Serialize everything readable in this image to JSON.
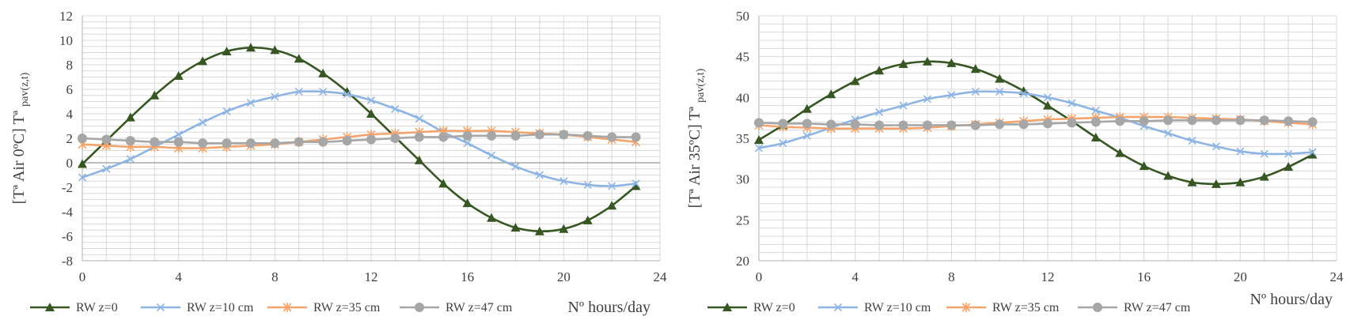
{
  "chart_data": [
    {
      "type": "line",
      "ylabel": "[Tª Air 0ºC] Tª",
      "ylabel_sub": "pav(z,t)",
      "xlabel": "Nº hours/day",
      "xlim": [
        0,
        24
      ],
      "xticks": [
        0,
        4,
        8,
        12,
        16,
        20,
        24
      ],
      "ylim": [
        -8,
        12
      ],
      "yticks": [
        -8,
        -6,
        -4,
        -2,
        0,
        2,
        4,
        6,
        8,
        10,
        12
      ],
      "minor_grid_step": 0.5,
      "grid": true,
      "legend_position": "bottom",
      "x": [
        0,
        1,
        2,
        3,
        4,
        5,
        6,
        7,
        8,
        9,
        10,
        11,
        12,
        13,
        14,
        15,
        16,
        17,
        18,
        19,
        20,
        21,
        22,
        23
      ],
      "series": [
        {
          "name": "RW z=0",
          "color": "#375623",
          "marker": "triangle",
          "values": [
            -0.1,
            1.8,
            3.7,
            5.5,
            7.1,
            8.3,
            9.1,
            9.4,
            9.2,
            8.5,
            7.3,
            5.8,
            4.0,
            2.1,
            0.2,
            -1.7,
            -3.3,
            -4.5,
            -5.3,
            -5.6,
            -5.4,
            -4.7,
            -3.5,
            -1.9
          ]
        },
        {
          "name": "RW z=10 cm",
          "color": "#8db4e2",
          "marker": "x",
          "values": [
            -1.2,
            -0.5,
            0.3,
            1.3,
            2.3,
            3.3,
            4.2,
            4.9,
            5.4,
            5.8,
            5.8,
            5.6,
            5.1,
            4.4,
            3.6,
            2.5,
            1.6,
            0.6,
            -0.3,
            -1.0,
            -1.5,
            -1.8,
            -1.9,
            -1.7
          ]
        },
        {
          "name": "RW z=35 cm",
          "color": "#f4a46b",
          "marker": "asterisk",
          "values": [
            1.5,
            1.4,
            1.3,
            1.3,
            1.2,
            1.2,
            1.3,
            1.4,
            1.5,
            1.7,
            1.9,
            2.1,
            2.3,
            2.4,
            2.5,
            2.6,
            2.6,
            2.6,
            2.5,
            2.4,
            2.3,
            2.1,
            1.9,
            1.7
          ]
        },
        {
          "name": "RW z=47 cm",
          "color": "#a6a6a6",
          "marker": "circle",
          "values": [
            2.0,
            1.9,
            1.8,
            1.7,
            1.7,
            1.6,
            1.6,
            1.6,
            1.6,
            1.7,
            1.7,
            1.8,
            1.9,
            2.0,
            2.1,
            2.1,
            2.2,
            2.2,
            2.2,
            2.3,
            2.3,
            2.2,
            2.1,
            2.1
          ]
        }
      ]
    },
    {
      "type": "line",
      "ylabel": "[Tª Air 35ºC] Tª",
      "ylabel_sub": "pav(z,t)",
      "xlabel": "Nº hours/day",
      "xlim": [
        0,
        24
      ],
      "xticks": [
        0,
        4,
        8,
        12,
        16,
        20,
        24
      ],
      "ylim": [
        20,
        50
      ],
      "yticks": [
        20,
        25,
        30,
        35,
        40,
        45,
        50
      ],
      "minor_grid_step": 1,
      "grid": true,
      "legend_position": "bottom",
      "x": [
        0,
        1,
        2,
        3,
        4,
        5,
        6,
        7,
        8,
        9,
        10,
        11,
        12,
        13,
        14,
        15,
        16,
        17,
        18,
        19,
        20,
        21,
        22,
        23
      ],
      "series": [
        {
          "name": "RW z=0",
          "color": "#375623",
          "marker": "triangle",
          "values": [
            34.8,
            36.6,
            38.6,
            40.4,
            42.0,
            43.3,
            44.1,
            44.4,
            44.2,
            43.5,
            42.3,
            40.8,
            39.0,
            37.1,
            35.1,
            33.2,
            31.6,
            30.4,
            29.6,
            29.4,
            29.6,
            30.3,
            31.5,
            33.0
          ]
        },
        {
          "name": "RW z=10 cm",
          "color": "#8db4e2",
          "marker": "x",
          "values": [
            33.8,
            34.4,
            35.3,
            36.3,
            37.3,
            38.2,
            39.0,
            39.8,
            40.3,
            40.7,
            40.7,
            40.5,
            40.0,
            39.3,
            38.4,
            37.5,
            36.5,
            35.6,
            34.7,
            34.0,
            33.4,
            33.1,
            33.1,
            33.3
          ]
        },
        {
          "name": "RW z=35 cm",
          "color": "#f4a46b",
          "marker": "asterisk",
          "values": [
            36.6,
            36.4,
            36.3,
            36.2,
            36.2,
            36.2,
            36.2,
            36.3,
            36.5,
            36.7,
            36.9,
            37.1,
            37.3,
            37.4,
            37.5,
            37.6,
            37.6,
            37.6,
            37.5,
            37.4,
            37.3,
            37.1,
            36.9,
            36.7
          ]
        },
        {
          "name": "RW z=47 cm",
          "color": "#a6a6a6",
          "marker": "circle",
          "values": [
            36.9,
            36.8,
            36.8,
            36.7,
            36.7,
            36.6,
            36.6,
            36.6,
            36.6,
            36.6,
            36.7,
            36.7,
            36.8,
            36.9,
            37.0,
            37.1,
            37.1,
            37.2,
            37.2,
            37.2,
            37.2,
            37.2,
            37.1,
            37.0
          ]
        }
      ]
    }
  ]
}
